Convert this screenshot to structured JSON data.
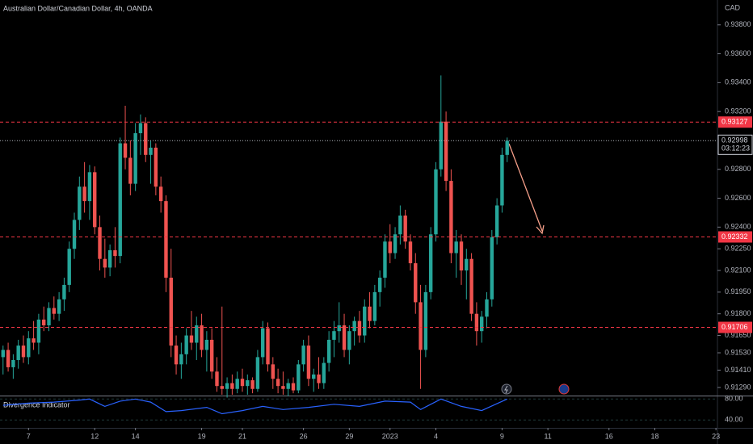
{
  "chart_data": {
    "type": "candlestick",
    "title": "Australian Dollar/Canadian Dollar, 4h, OANDA",
    "currency": "CAD",
    "up_color": "#26a69a",
    "down_color": "#ef5350",
    "ylim": [
      0.91234,
      0.93972
    ],
    "yticks": [
      {
        "value": 0.938,
        "label": "0.93800"
      },
      {
        "value": 0.936,
        "label": "0.93600"
      },
      {
        "value": 0.934,
        "label": "0.93400"
      },
      {
        "value": 0.932,
        "label": "0.93200"
      },
      {
        "value": 0.928,
        "label": "0.92800"
      },
      {
        "value": 0.926,
        "label": "0.92600"
      },
      {
        "value": 0.924,
        "label": "0.92400"
      },
      {
        "value": 0.9225,
        "label": "0.92250"
      },
      {
        "value": 0.921,
        "label": "0.92100"
      },
      {
        "value": 0.9195,
        "label": "0.91950"
      },
      {
        "value": 0.918,
        "label": "0.91800"
      },
      {
        "value": 0.9165,
        "label": "0.91650"
      },
      {
        "value": 0.9153,
        "label": "0.91530"
      },
      {
        "value": 0.9141,
        "label": "0.91410"
      },
      {
        "value": 0.9129,
        "label": "0.91290"
      }
    ],
    "xlim": [
      -0.6,
      140.3
    ],
    "xticks": [
      {
        "value": 5,
        "label": "7"
      },
      {
        "value": 18,
        "label": "12"
      },
      {
        "value": 26,
        "label": "14"
      },
      {
        "value": 39,
        "label": "19"
      },
      {
        "value": 47,
        "label": "21"
      },
      {
        "value": 59,
        "label": "26"
      },
      {
        "value": 68,
        "label": "29"
      },
      {
        "value": 76,
        "label": "2023"
      },
      {
        "value": 85,
        "label": "4"
      },
      {
        "value": 98,
        "label": "9"
      },
      {
        "value": 107,
        "label": "11"
      },
      {
        "value": 119,
        "label": "16"
      },
      {
        "value": 128,
        "label": "18"
      },
      {
        "value": 140,
        "label": "23"
      }
    ],
    "levels": [
      0.93127,
      0.92332,
      0.91706
    ],
    "level_color": "#f23645",
    "countdown": "03:12:23",
    "candles": [
      [
        0.915,
        0.9158,
        0.9138,
        0.9155
      ],
      [
        0.9155,
        0.916,
        0.914,
        0.9143
      ],
      [
        0.9143,
        0.9152,
        0.9135,
        0.9148
      ],
      [
        0.9148,
        0.9162,
        0.9142,
        0.9158
      ],
      [
        0.9158,
        0.9165,
        0.9146,
        0.915
      ],
      [
        0.915,
        0.9168,
        0.9145,
        0.9163
      ],
      [
        0.9163,
        0.9175,
        0.9155,
        0.916
      ],
      [
        0.916,
        0.918,
        0.9152,
        0.9176
      ],
      [
        0.9176,
        0.9185,
        0.9168,
        0.9172
      ],
      [
        0.9172,
        0.9188,
        0.9168,
        0.9184
      ],
      [
        0.9184,
        0.9192,
        0.9176,
        0.918
      ],
      [
        0.918,
        0.9195,
        0.9175,
        0.919
      ],
      [
        0.919,
        0.9205,
        0.9182,
        0.92
      ],
      [
        0.92,
        0.923,
        0.9195,
        0.9225
      ],
      [
        0.9225,
        0.925,
        0.9218,
        0.9245
      ],
      [
        0.9245,
        0.9275,
        0.9238,
        0.9268
      ],
      [
        0.9268,
        0.9285,
        0.925,
        0.9258
      ],
      [
        0.9258,
        0.9283,
        0.9245,
        0.9278
      ],
      [
        0.9278,
        0.9282,
        0.9235,
        0.924
      ],
      [
        0.924,
        0.9248,
        0.921,
        0.9218
      ],
      [
        0.9218,
        0.9232,
        0.9205,
        0.9212
      ],
      [
        0.9212,
        0.9228,
        0.9206,
        0.9224
      ],
      [
        0.9224,
        0.924,
        0.9212,
        0.922
      ],
      [
        0.922,
        0.9302,
        0.9215,
        0.9298
      ],
      [
        0.9298,
        0.9324,
        0.928,
        0.9288
      ],
      [
        0.9288,
        0.93,
        0.9262,
        0.927
      ],
      [
        0.927,
        0.9312,
        0.9265,
        0.9305
      ],
      [
        0.9305,
        0.9318,
        0.929,
        0.9312
      ],
      [
        0.9312,
        0.9316,
        0.9285,
        0.929
      ],
      [
        0.929,
        0.93,
        0.927,
        0.9295
      ],
      [
        0.9295,
        0.9298,
        0.9262,
        0.9268
      ],
      [
        0.9268,
        0.9275,
        0.925,
        0.9258
      ],
      [
        0.9258,
        0.9262,
        0.9195,
        0.9205
      ],
      [
        0.9205,
        0.9225,
        0.915,
        0.9158
      ],
      [
        0.9158,
        0.9165,
        0.9138,
        0.9145
      ],
      [
        0.9145,
        0.916,
        0.9135,
        0.9152
      ],
      [
        0.9152,
        0.917,
        0.9145,
        0.9165
      ],
      [
        0.9165,
        0.9182,
        0.9155,
        0.916
      ],
      [
        0.916,
        0.9178,
        0.9148,
        0.9172
      ],
      [
        0.9172,
        0.918,
        0.915,
        0.9155
      ],
      [
        0.9155,
        0.9168,
        0.914,
        0.9162
      ],
      [
        0.9162,
        0.917,
        0.9135,
        0.914
      ],
      [
        0.914,
        0.915,
        0.9126,
        0.913
      ],
      [
        0.913,
        0.9185,
        0.9124,
        0.9128
      ],
      [
        0.9128,
        0.9136,
        0.9122,
        0.9132
      ],
      [
        0.9132,
        0.9138,
        0.9124,
        0.9128
      ],
      [
        0.9128,
        0.914,
        0.9125,
        0.9135
      ],
      [
        0.9135,
        0.9142,
        0.9126,
        0.913
      ],
      [
        0.913,
        0.9138,
        0.9124,
        0.9134
      ],
      [
        0.9134,
        0.9136,
        0.9125,
        0.9128
      ],
      [
        0.9128,
        0.9155,
        0.9126,
        0.915
      ],
      [
        0.915,
        0.9175,
        0.9145,
        0.917
      ],
      [
        0.917,
        0.9174,
        0.914,
        0.9145
      ],
      [
        0.9145,
        0.915,
        0.9128,
        0.9135
      ],
      [
        0.9135,
        0.9142,
        0.9125,
        0.913
      ],
      [
        0.913,
        0.914,
        0.9124,
        0.9128
      ],
      [
        0.9128,
        0.9135,
        0.9123,
        0.9132
      ],
      [
        0.9132,
        0.9136,
        0.9125,
        0.9127
      ],
      [
        0.9127,
        0.9148,
        0.9125,
        0.9145
      ],
      [
        0.9145,
        0.9162,
        0.914,
        0.9158
      ],
      [
        0.9158,
        0.9165,
        0.913,
        0.9135
      ],
      [
        0.9135,
        0.9142,
        0.9126,
        0.9138
      ],
      [
        0.9138,
        0.915,
        0.9128,
        0.9132
      ],
      [
        0.9132,
        0.915,
        0.9128,
        0.9146
      ],
      [
        0.9146,
        0.9168,
        0.914,
        0.9162
      ],
      [
        0.9162,
        0.9175,
        0.915,
        0.9168
      ],
      [
        0.9168,
        0.9188,
        0.916,
        0.9172
      ],
      [
        0.9172,
        0.918,
        0.915,
        0.9155
      ],
      [
        0.9155,
        0.9172,
        0.9145,
        0.9168
      ],
      [
        0.9168,
        0.9178,
        0.9158,
        0.9175
      ],
      [
        0.9175,
        0.9182,
        0.916,
        0.9165
      ],
      [
        0.9165,
        0.919,
        0.916,
        0.9185
      ],
      [
        0.9185,
        0.9195,
        0.917,
        0.9175
      ],
      [
        0.9175,
        0.92,
        0.9172,
        0.9195
      ],
      [
        0.9195,
        0.921,
        0.9185,
        0.9205
      ],
      [
        0.9205,
        0.9235,
        0.9198,
        0.923
      ],
      [
        0.923,
        0.9242,
        0.9215,
        0.9222
      ],
      [
        0.9222,
        0.924,
        0.9218,
        0.9235
      ],
      [
        0.9235,
        0.9255,
        0.9228,
        0.9248
      ],
      [
        0.9248,
        0.9252,
        0.9225,
        0.923
      ],
      [
        0.923,
        0.9235,
        0.921,
        0.9215
      ],
      [
        0.9215,
        0.9222,
        0.918,
        0.9188
      ],
      [
        0.9188,
        0.92,
        0.9128,
        0.9155
      ],
      [
        0.9155,
        0.92,
        0.915,
        0.9195
      ],
      [
        0.9195,
        0.924,
        0.919,
        0.9235
      ],
      [
        0.9235,
        0.9285,
        0.923,
        0.928
      ],
      [
        0.928,
        0.9345,
        0.9275,
        0.9313
      ],
      [
        0.9313,
        0.932,
        0.9265,
        0.9272
      ],
      [
        0.9272,
        0.928,
        0.9215,
        0.9222
      ],
      [
        0.9222,
        0.9238,
        0.9205,
        0.923
      ],
      [
        0.923,
        0.9235,
        0.92,
        0.921
      ],
      [
        0.921,
        0.9225,
        0.919,
        0.9218
      ],
      [
        0.9218,
        0.9222,
        0.9175,
        0.918
      ],
      [
        0.918,
        0.9188,
        0.9158,
        0.9168
      ],
      [
        0.9168,
        0.9182,
        0.916,
        0.9178
      ],
      [
        0.9178,
        0.9195,
        0.917,
        0.919
      ],
      [
        0.919,
        0.9238,
        0.9185,
        0.9233
      ],
      [
        0.9233,
        0.926,
        0.9228,
        0.9255
      ],
      [
        0.9255,
        0.9295,
        0.925,
        0.929
      ],
      [
        0.929,
        0.9302,
        0.9285,
        0.92998
      ]
    ],
    "indicator": {
      "name": "Divergence Indicator",
      "color": "#2962ff",
      "ylim": [
        25,
        85
      ],
      "yticks": [
        {
          "value": 80,
          "label": "80.00"
        },
        {
          "value": 40,
          "label": "40.00"
        }
      ],
      "x": [
        0,
        5,
        10,
        15,
        17,
        20,
        23,
        26,
        29,
        32,
        35,
        40,
        43,
        47,
        51,
        55,
        60,
        65,
        70,
        75,
        80,
        82,
        86,
        90,
        94,
        99
      ],
      "values": [
        68,
        72,
        74,
        78,
        80,
        66,
        76,
        80,
        74,
        56,
        58,
        64,
        52,
        58,
        66,
        60,
        64,
        70,
        66,
        76,
        74,
        60,
        80,
        66,
        58,
        80
      ]
    }
  }
}
